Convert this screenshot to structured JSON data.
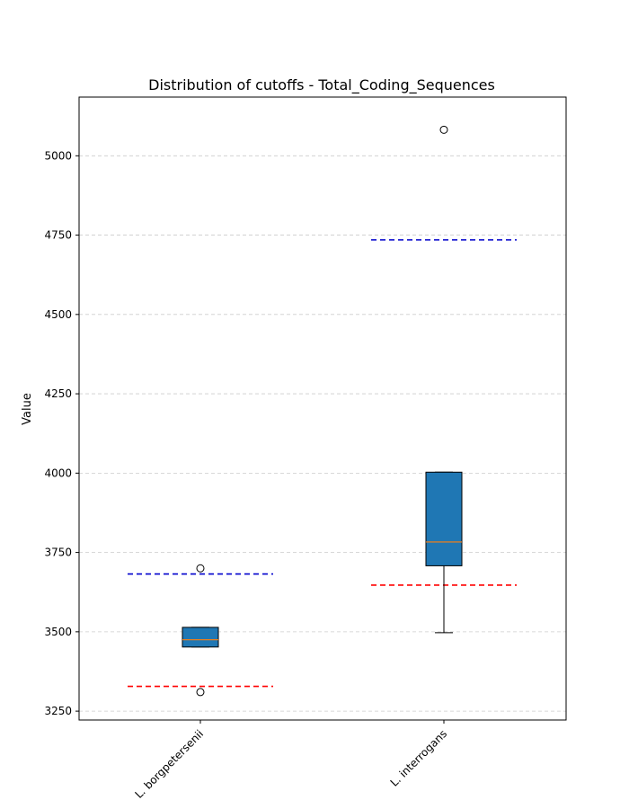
{
  "chart_data": {
    "type": "box",
    "title": "Distribution of cutoffs - Total_Coding_Sequences",
    "xlabel": "",
    "ylabel": "Value",
    "ylim": [
      3222,
      5185
    ],
    "yticks": [
      3250,
      3500,
      3750,
      4000,
      4250,
      4500,
      4750,
      5000
    ],
    "grid": "y-dashed",
    "categories": [
      "L. borgpetersenii",
      "L. interrogans"
    ],
    "boxes": [
      {
        "category": "L. borgpetersenii",
        "whisker_low": 3452,
        "q1": 3452,
        "median": 3475,
        "q3": 3514,
        "whisker_high": 3514,
        "outliers": [
          3700,
          3310
        ],
        "upper_cutoff": 3682,
        "lower_cutoff": 3328
      },
      {
        "category": "L. interrogans",
        "whisker_low": 3497,
        "q1": 3708,
        "median": 3783,
        "q3": 4003,
        "whisker_high": 4003,
        "outliers": [
          5082
        ],
        "upper_cutoff": 4735,
        "lower_cutoff": 3647
      }
    ],
    "colors": {
      "box_fill": "#1f77b4",
      "median": "#ff7f0e",
      "upper_cutoff": "#0000cc",
      "lower_cutoff": "#ff0000",
      "grid": "#cccccc"
    }
  }
}
